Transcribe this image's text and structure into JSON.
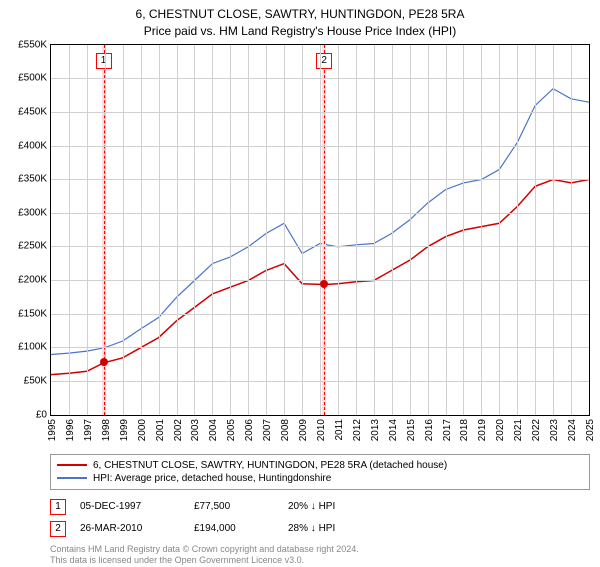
{
  "title": {
    "line1": "6, CHESTNUT CLOSE, SAWTRY, HUNTINGDON, PE28 5RA",
    "line2": "Price paid vs. HM Land Registry's House Price Index (HPI)"
  },
  "chart": {
    "type": "line",
    "background_color": "#ffffff",
    "grid_color": "#d0d0d0",
    "border_color": "#000000",
    "ylim": [
      0,
      550
    ],
    "ytick_step": 50,
    "yticks": [
      0,
      50,
      100,
      150,
      200,
      250,
      300,
      350,
      400,
      450,
      500,
      550
    ],
    "ytick_labels": [
      "£0",
      "£50K",
      "£100K",
      "£150K",
      "£200K",
      "£250K",
      "£300K",
      "£350K",
      "£400K",
      "£450K",
      "£500K",
      "£550K"
    ],
    "xlim": [
      1995,
      2025
    ],
    "xticks": [
      1995,
      1996,
      1997,
      1998,
      1999,
      2000,
      2001,
      2002,
      2003,
      2004,
      2005,
      2006,
      2007,
      2008,
      2009,
      2010,
      2011,
      2012,
      2013,
      2014,
      2015,
      2016,
      2017,
      2018,
      2019,
      2020,
      2021,
      2022,
      2023,
      2024,
      2025
    ],
    "label_fontsize": 10,
    "label_color": "#000000",
    "band1": {
      "x": 1997.93,
      "color": "#ffe0e0",
      "line_color": "#ff0000",
      "dash": "2,2",
      "label": "1",
      "label_border": "#ff0000"
    },
    "band2": {
      "x": 2010.23,
      "color": "#ffe0e0",
      "line_color": "#ff0000",
      "dash": "2,2",
      "label": "2",
      "label_border": "#ff0000"
    },
    "series": {
      "property": {
        "color": "#d00000",
        "width": 1.5,
        "points_x": [
          1995,
          1996,
          1997,
          1997.93,
          1999,
          2000,
          2001,
          2002,
          2003,
          2004,
          2005,
          2006,
          2007,
          2008,
          2009,
          2010.23,
          2011,
          2012,
          2013,
          2014,
          2015,
          2016,
          2017,
          2018,
          2019,
          2020,
          2021,
          2022,
          2023,
          2024,
          2025
        ],
        "points_y": [
          60,
          62,
          65,
          77.5,
          85,
          100,
          115,
          140,
          160,
          180,
          190,
          200,
          215,
          225,
          195,
          194,
          195,
          198,
          200,
          215,
          230,
          250,
          265,
          275,
          280,
          285,
          310,
          340,
          350,
          345,
          350
        ]
      },
      "hpi": {
        "color": "#4a74c9",
        "width": 1.2,
        "points_x": [
          1995,
          1996,
          1997,
          1998,
          1999,
          2000,
          2001,
          2002,
          2003,
          2004,
          2005,
          2006,
          2007,
          2008,
          2009,
          2010,
          2011,
          2012,
          2013,
          2014,
          2015,
          2016,
          2017,
          2018,
          2019,
          2020,
          2021,
          2022,
          2023,
          2024,
          2025
        ],
        "points_y": [
          90,
          92,
          95,
          100,
          110,
          128,
          145,
          175,
          200,
          225,
          235,
          250,
          270,
          285,
          240,
          255,
          250,
          253,
          255,
          270,
          290,
          315,
          335,
          345,
          350,
          365,
          405,
          460,
          485,
          470,
          465
        ]
      }
    },
    "sale_points": [
      {
        "x": 1997.93,
        "y": 77.5,
        "color": "#d00000"
      },
      {
        "x": 2010.23,
        "y": 194,
        "color": "#d00000"
      }
    ]
  },
  "legend": {
    "items": [
      {
        "color": "#d00000",
        "label": "6, CHESTNUT CLOSE, SAWTRY, HUNTINGDON, PE28 5RA (detached house)"
      },
      {
        "color": "#4a74c9",
        "label": "HPI: Average price, detached house, Huntingdonshire"
      }
    ]
  },
  "sales": [
    {
      "idx": "1",
      "border": "#ff0000",
      "date": "05-DEC-1997",
      "price": "£77,500",
      "hpi": "20% ↓ HPI"
    },
    {
      "idx": "2",
      "border": "#ff0000",
      "date": "26-MAR-2010",
      "price": "£194,000",
      "hpi": "28% ↓ HPI"
    }
  ],
  "footer": {
    "line1": "Contains HM Land Registry data © Crown copyright and database right 2024.",
    "line2": "This data is licensed under the Open Government Licence v3.0."
  }
}
